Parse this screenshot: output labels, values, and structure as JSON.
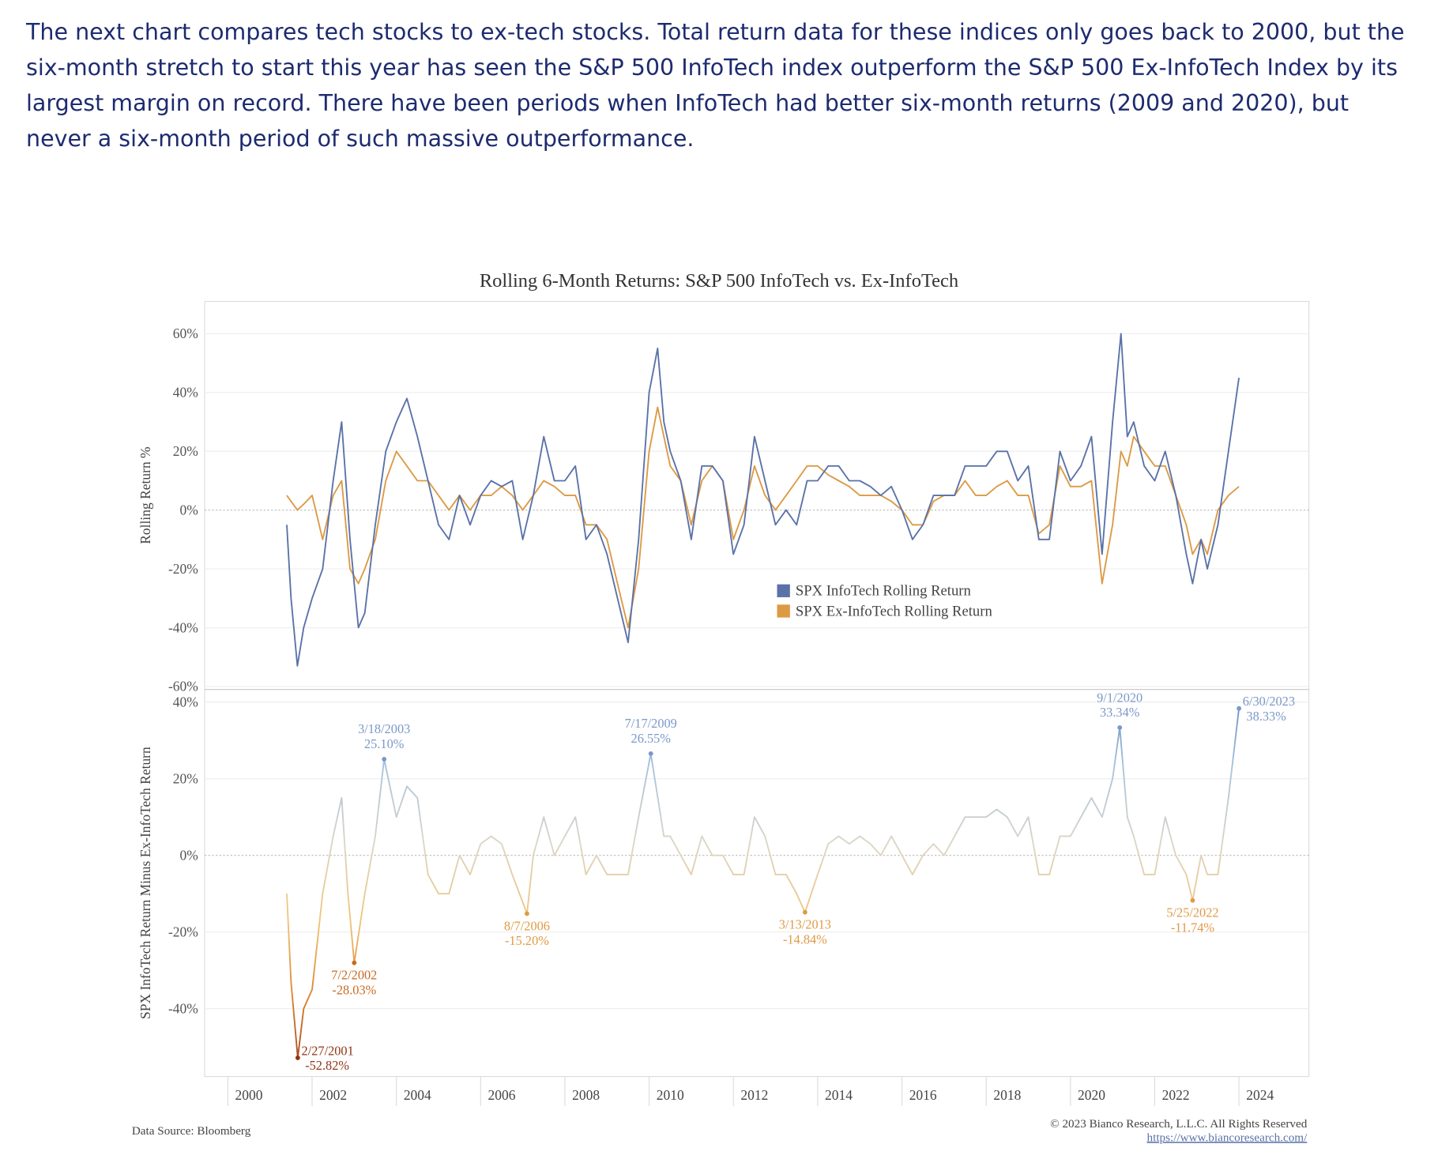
{
  "paragraph": "The next chart compares tech stocks to ex-tech stocks. Total return data for these indices only goes back to 2000, but the six-month stretch to start this year has seen the S&P 500 InfoTech index outperform the S&P 500 Ex-InfoTech Index by its largest margin on record. There have been periods when InfoTech had better six-month returns (2009 and 2020), but never a six-month period of such massive outperformance.",
  "footer": {
    "source": "Data Source: Bloomberg",
    "copyright": "© 2023 Bianco Research, L.L.C. All Rights Reserved",
    "url": "https://www.biancoresearch.com/"
  },
  "chart_data": [
    {
      "type": "line",
      "title": "Rolling 6-Month Returns: S&P 500 InfoTech vs. Ex-InfoTech",
      "ylabel": "Rolling Return %",
      "xlim": [
        1998.95,
        2025.16
      ],
      "ylim": [
        -61,
        71
      ],
      "yticks": [
        {
          "value": -60,
          "label": "-60%"
        },
        {
          "value": -40,
          "label": "-40%"
        },
        {
          "value": -20,
          "label": "-20%"
        },
        {
          "value": 0,
          "label": "0%"
        },
        {
          "value": 20,
          "label": "20%"
        },
        {
          "value": 40,
          "label": "40%"
        },
        {
          "value": 60,
          "label": "60%"
        }
      ],
      "grid": true,
      "legend": "center",
      "x": [
        2000.9,
        2001.0,
        2001.15,
        2001.3,
        2001.5,
        2001.75,
        2002.0,
        2002.2,
        2002.4,
        2002.6,
        2002.75,
        2003.0,
        2003.25,
        2003.5,
        2003.75,
        2004.0,
        2004.25,
        2004.5,
        2004.75,
        2005.0,
        2005.25,
        2005.5,
        2005.75,
        2006.0,
        2006.25,
        2006.5,
        2006.75,
        2007.0,
        2007.25,
        2007.5,
        2007.75,
        2008.0,
        2008.25,
        2008.5,
        2008.75,
        2009.0,
        2009.25,
        2009.5,
        2009.7,
        2009.85,
        2010.0,
        2010.25,
        2010.5,
        2010.75,
        2011.0,
        2011.25,
        2011.5,
        2011.75,
        2012.0,
        2012.25,
        2012.5,
        2012.75,
        2013.0,
        2013.25,
        2013.5,
        2013.75,
        2014.0,
        2014.25,
        2014.5,
        2014.75,
        2015.0,
        2015.25,
        2015.5,
        2015.75,
        2016.0,
        2016.25,
        2016.5,
        2016.75,
        2017.0,
        2017.25,
        2017.5,
        2017.75,
        2018.0,
        2018.25,
        2018.5,
        2018.75,
        2019.0,
        2019.25,
        2019.5,
        2019.75,
        2020.0,
        2020.25,
        2020.5,
        2020.7,
        2020.85,
        2021.0,
        2021.25,
        2021.5,
        2021.75,
        2022.0,
        2022.25,
        2022.4,
        2022.6,
        2022.75,
        2023.0,
        2023.25,
        2023.5
      ],
      "series": [
        {
          "name": "SPX InfoTech Rolling Return",
          "color": "#5a72a8",
          "values": [
            -5,
            -30,
            -53,
            -40,
            -30,
            -20,
            10,
            30,
            -10,
            -40,
            -35,
            -5,
            20,
            30,
            38,
            25,
            10,
            -5,
            -10,
            5,
            -5,
            5,
            10,
            8,
            10,
            -10,
            5,
            25,
            10,
            10,
            15,
            -10,
            -5,
            -15,
            -30,
            -45,
            -10,
            40,
            55,
            30,
            20,
            10,
            -10,
            15,
            15,
            10,
            -15,
            -5,
            25,
            10,
            -5,
            0,
            -5,
            10,
            10,
            15,
            15,
            10,
            10,
            8,
            5,
            8,
            0,
            -10,
            -5,
            5,
            5,
            5,
            15,
            15,
            15,
            20,
            20,
            10,
            15,
            -10,
            -10,
            20,
            10,
            15,
            25,
            -15,
            30,
            60,
            25,
            30,
            15,
            10,
            20,
            5,
            -15,
            -25,
            -10,
            -20,
            -5,
            20,
            45
          ]
        },
        {
          "name": "SPX Ex-InfoTech Rolling Return",
          "color": "#dc9a45",
          "values": [
            5,
            3,
            0,
            2,
            5,
            -10,
            5,
            10,
            -20,
            -25,
            -20,
            -10,
            10,
            20,
            15,
            10,
            10,
            5,
            0,
            5,
            0,
            5,
            5,
            8,
            5,
            0,
            5,
            10,
            8,
            5,
            5,
            -5,
            -5,
            -10,
            -25,
            -40,
            -20,
            20,
            35,
            25,
            15,
            10,
            -5,
            10,
            15,
            10,
            -10,
            0,
            15,
            5,
            0,
            5,
            10,
            15,
            15,
            12,
            10,
            8,
            5,
            5,
            5,
            3,
            0,
            -5,
            -5,
            3,
            5,
            5,
            10,
            5,
            5,
            8,
            10,
            5,
            5,
            -8,
            -5,
            15,
            8,
            8,
            10,
            -25,
            -5,
            20,
            15,
            25,
            20,
            15,
            15,
            5,
            -5,
            -15,
            -10,
            -15,
            0,
            5,
            8
          ]
        }
      ]
    },
    {
      "type": "line",
      "ylabel": "SPX InfoTech Return Minus Ex-InfoTech Return",
      "xlim": [
        1998.95,
        2025.16
      ],
      "ylim": [
        -57.7,
        43.3
      ],
      "xticks": [
        2000,
        2002,
        2004,
        2006,
        2008,
        2010,
        2012,
        2014,
        2016,
        2018,
        2020,
        2022,
        2024
      ],
      "yticks": [
        {
          "value": -40,
          "label": "-40%"
        },
        {
          "value": -20,
          "label": "-20%"
        },
        {
          "value": 0,
          "label": "0%"
        },
        {
          "value": 20,
          "label": "20%"
        },
        {
          "value": 40,
          "label": "40%"
        }
      ],
      "grid": true,
      "colors": [
        "#a13a17",
        "#d9822b",
        "#f0c47a",
        "#dcd6c6",
        "#a8c3de",
        "#5e82bd"
      ],
      "x": [
        2000.9,
        2001.0,
        2001.16,
        2001.3,
        2001.5,
        2001.75,
        2002.0,
        2002.2,
        2002.35,
        2002.5,
        2002.75,
        2003.0,
        2003.21,
        2003.5,
        2003.75,
        2004.0,
        2004.25,
        2004.5,
        2004.75,
        2005.0,
        2005.25,
        2005.5,
        2005.75,
        2006.0,
        2006.25,
        2006.6,
        2006.75,
        2007.0,
        2007.25,
        2007.5,
        2007.75,
        2008.0,
        2008.25,
        2008.5,
        2008.75,
        2009.0,
        2009.25,
        2009.54,
        2009.85,
        2010.0,
        2010.25,
        2010.5,
        2010.75,
        2011.0,
        2011.25,
        2011.5,
        2011.75,
        2012.0,
        2012.25,
        2012.5,
        2012.75,
        2013.0,
        2013.2,
        2013.5,
        2013.75,
        2014.0,
        2014.25,
        2014.5,
        2014.75,
        2015.0,
        2015.25,
        2015.5,
        2015.75,
        2016.0,
        2016.25,
        2016.5,
        2016.75,
        2017.0,
        2017.25,
        2017.5,
        2017.75,
        2018.0,
        2018.25,
        2018.5,
        2018.75,
        2019.0,
        2019.25,
        2019.5,
        2019.75,
        2020.0,
        2020.25,
        2020.5,
        2020.67,
        2020.85,
        2021.0,
        2021.25,
        2021.5,
        2021.75,
        2022.0,
        2022.25,
        2022.4,
        2022.6,
        2022.75,
        2023.0,
        2023.25,
        2023.5
      ],
      "values": [
        -10,
        -33,
        -52.82,
        -40,
        -35,
        -10,
        5,
        15,
        -10,
        -28.03,
        -10,
        5,
        25.1,
        10,
        18,
        15,
        -5,
        -10,
        -10,
        0,
        -5,
        3,
        5,
        3,
        -5,
        -15.2,
        0,
        10,
        0,
        5,
        10,
        -5,
        0,
        -5,
        -5,
        -5,
        10,
        26.55,
        5,
        5,
        0,
        -5,
        5,
        0,
        0,
        -5,
        -5,
        10,
        5,
        -5,
        -5,
        -10,
        -14.84,
        -5,
        3,
        5,
        3,
        5,
        3,
        0,
        5,
        0,
        -5,
        0,
        3,
        0,
        5,
        10,
        10,
        10,
        12,
        10,
        5,
        10,
        -5,
        -5,
        5,
        5,
        10,
        15,
        10,
        20,
        33.34,
        10,
        5,
        -5,
        -5,
        10,
        0,
        -5,
        -11.74,
        0,
        -5,
        -5,
        15,
        38.33
      ],
      "annotations": [
        {
          "x": 2001.16,
          "value": -52.82,
          "date": "2/27/2001",
          "label": "-52.82%",
          "color": "#8f3415"
        },
        {
          "x": 2002.5,
          "value": -28.03,
          "date": "7/2/2002",
          "label": "-28.03%",
          "color": "#c96a22"
        },
        {
          "x": 2003.21,
          "value": 25.1,
          "date": "3/18/2003",
          "label": "25.10%",
          "color": "#7b98c8"
        },
        {
          "x": 2006.6,
          "value": -15.2,
          "date": "8/7/2006",
          "label": "-15.20%",
          "color": "#e09a45"
        },
        {
          "x": 2009.54,
          "value": 26.55,
          "date": "7/17/2009",
          "label": "26.55%",
          "color": "#7b98c8"
        },
        {
          "x": 2013.2,
          "value": -14.84,
          "date": "3/13/2013",
          "label": "-14.84%",
          "color": "#e09a45"
        },
        {
          "x": 2020.67,
          "value": 33.34,
          "date": "9/1/2020",
          "label": "33.34%",
          "color": "#7b98c8"
        },
        {
          "x": 2022.4,
          "value": -11.74,
          "date": "5/25/2022",
          "label": "-11.74%",
          "color": "#e09a45"
        },
        {
          "x": 2023.5,
          "value": 38.33,
          "date": "6/30/2023",
          "label": "38.33%",
          "color": "#7b98c8"
        }
      ]
    }
  ]
}
